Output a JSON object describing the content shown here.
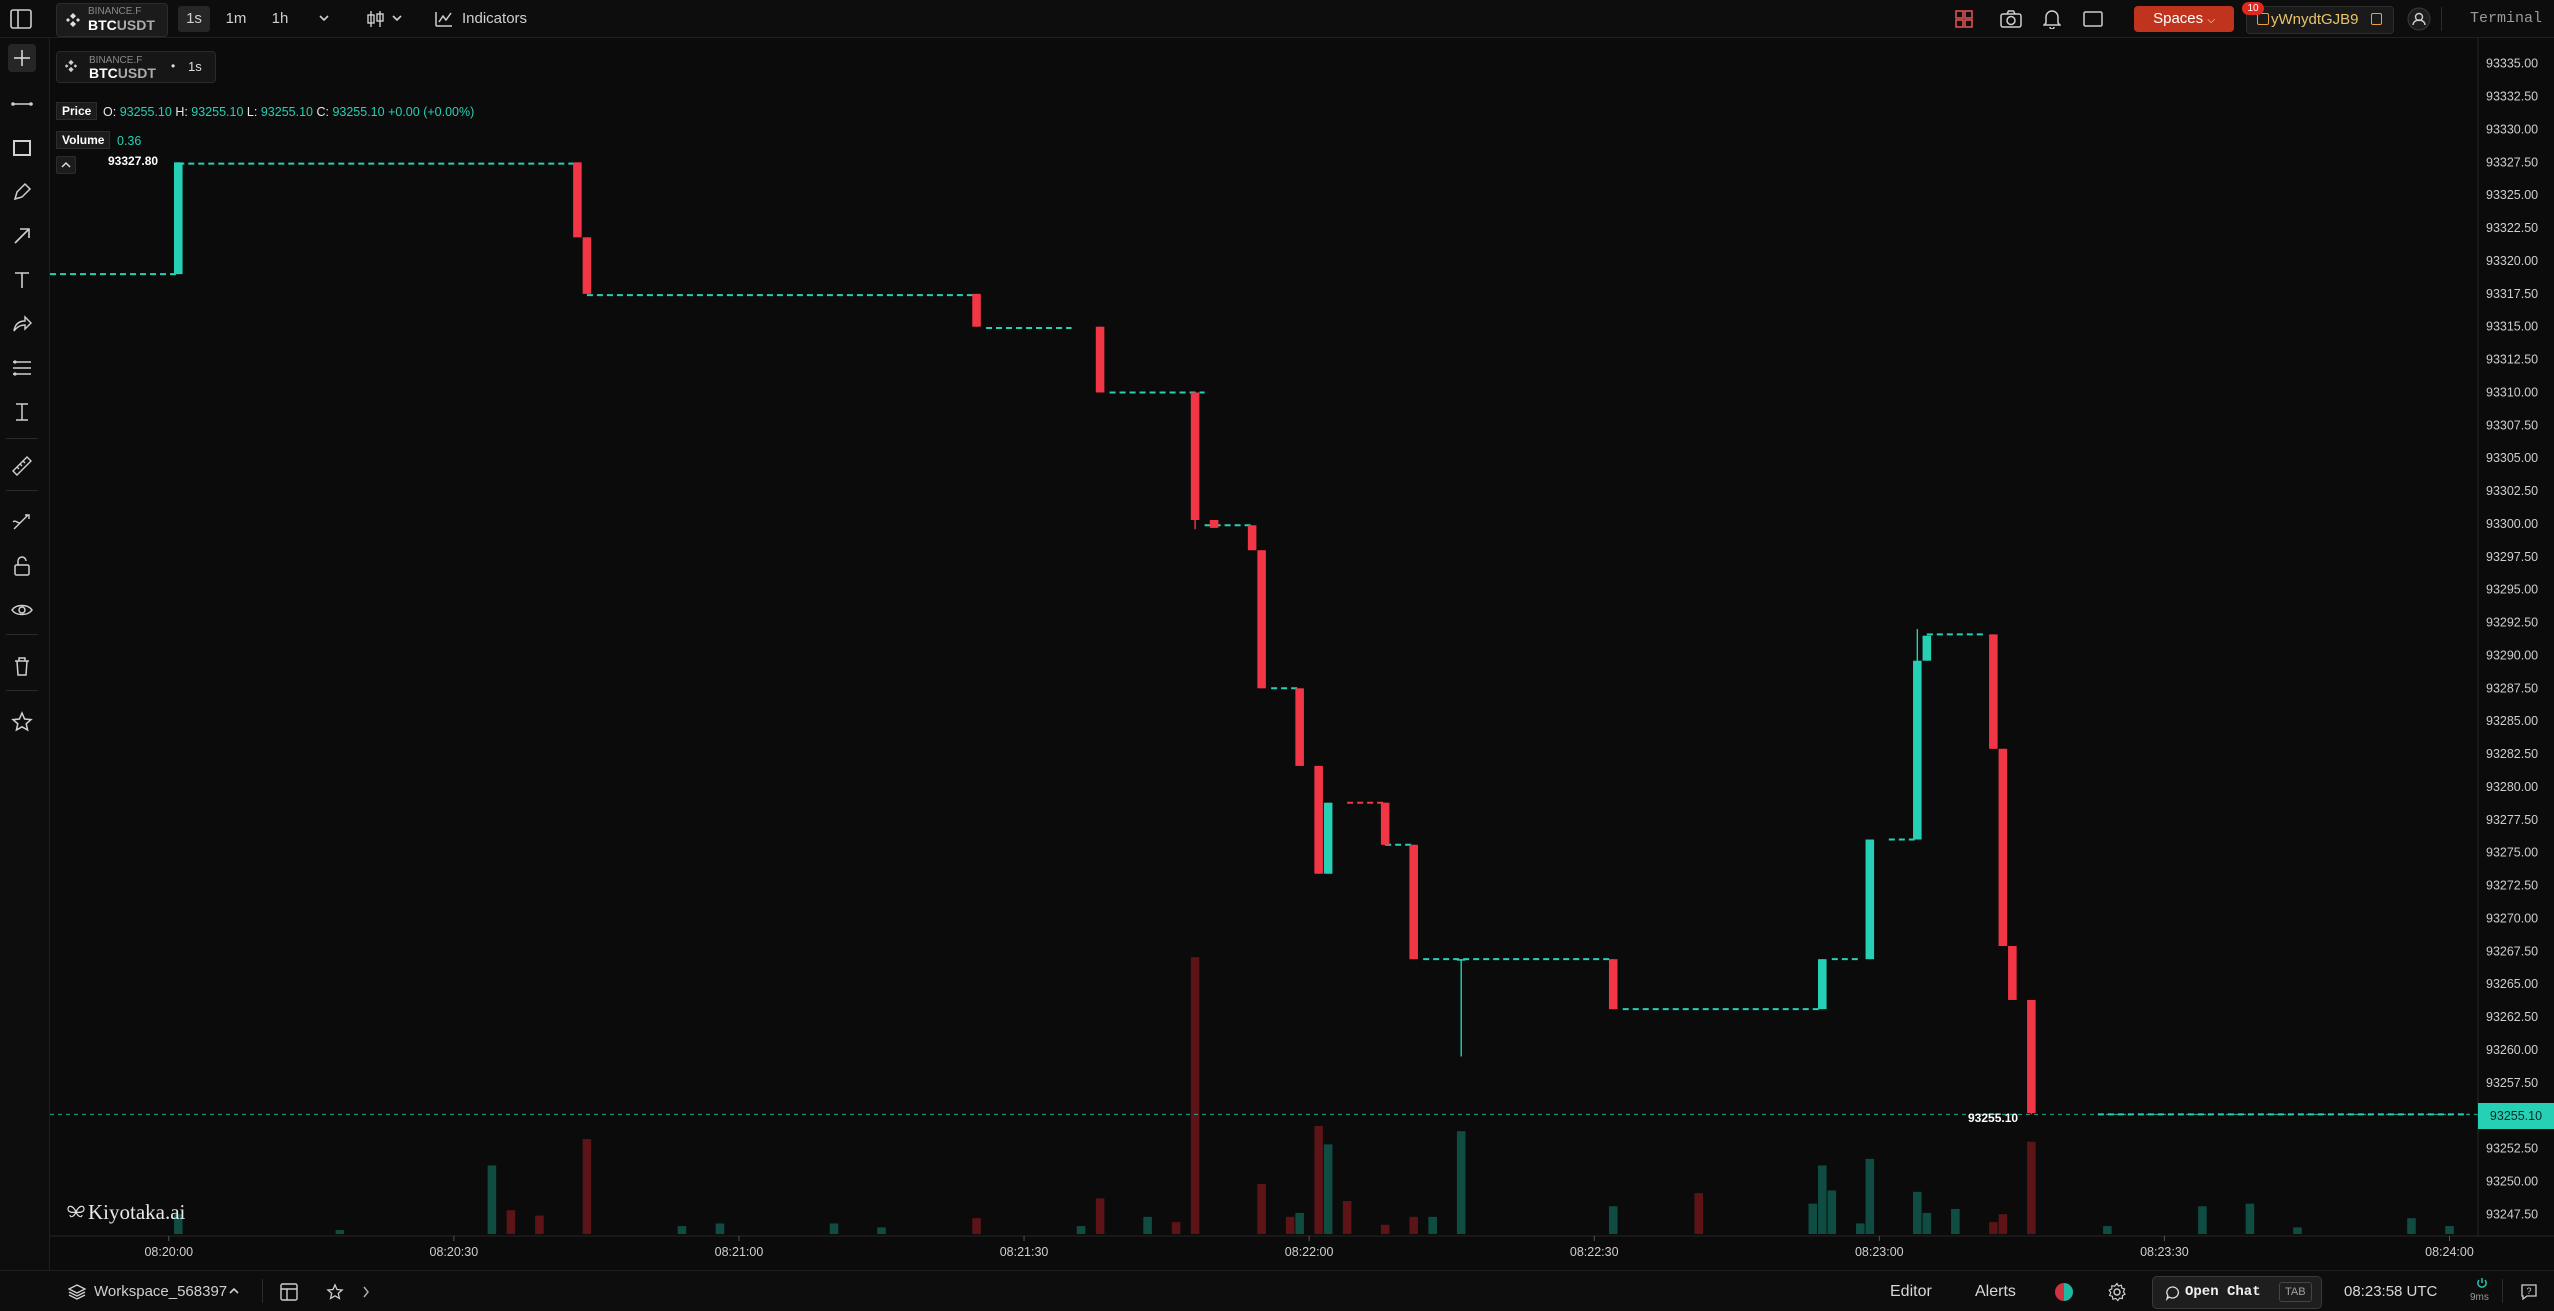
{
  "header": {
    "exchange": "BINANCE.F",
    "symbol_base": "BTC",
    "symbol_quote": "USDT",
    "intervals": [
      "1s",
      "1m",
      "1h"
    ],
    "active_interval": "1s",
    "indicators_label": "Indicators",
    "spaces_label": "Spaces",
    "account_name": "yWnydtGJB9",
    "notification_count": "10",
    "terminal_label": "Terminal"
  },
  "legend": {
    "exchange": "BINANCE.F",
    "symbol_base": "BTC",
    "symbol_quote": "USDT",
    "dot": "•",
    "interval": "1s",
    "price_label": "Price",
    "o_label": "O:",
    "o_value": "93255.10",
    "h_label": "H:",
    "h_value": "93255.10",
    "l_label": "L:",
    "l_value": "93255.10",
    "c_label": "C:",
    "c_value": "93255.10",
    "change": "+0.00",
    "change_pct": "(+0.00%)",
    "volume_label": "Volume",
    "volume_value": "0.36",
    "collapse_glyph": "^"
  },
  "watermark": "Kiyotaka.ai",
  "price_tags": {
    "high_tag": "93327.80",
    "last_tag": "93255.10",
    "axis_last": "93255.10"
  },
  "bottom": {
    "workspace": "Workspace_568397",
    "editor": "Editor",
    "alerts": "Alerts",
    "open_chat": "Open Chat",
    "tab_key": "TAB",
    "clock": "08:23:58 UTC",
    "latency": "9ms"
  },
  "colors": {
    "up": "#26d0b5",
    "down": "#f23645",
    "accent": "#c0341d",
    "volume_up": "#0f4d43",
    "volume_down": "#5c1416"
  },
  "chart_data": {
    "type": "candlestick",
    "y_ticks": [
      "93335.00",
      "93332.50",
      "93330.00",
      "93327.50",
      "93325.00",
      "93322.50",
      "93320.00",
      "93317.50",
      "93315.00",
      "93312.50",
      "93310.00",
      "93307.50",
      "93305.00",
      "93302.50",
      "93300.00",
      "93297.50",
      "93295.00",
      "93292.50",
      "93290.00",
      "93287.50",
      "93285.00",
      "93282.50",
      "93280.00",
      "93277.50",
      "93275.00",
      "93272.50",
      "93270.00",
      "93267.50",
      "93265.00",
      "93262.50",
      "93260.00",
      "93257.50",
      "93255.10",
      "93252.50",
      "93250.00",
      "93247.50"
    ],
    "ylim": [
      93246.0,
      93336.5
    ],
    "x_ticks": [
      "08:20:00",
      "08:20:30",
      "08:21:00",
      "08:21:30",
      "08:22:00",
      "08:22:30",
      "08:23:00",
      "08:23:30",
      "08:24:00"
    ],
    "x_tick_seconds": [
      0,
      30,
      60,
      90,
      120,
      150,
      180,
      210,
      240
    ],
    "xlim_seconds": [
      -12.5,
      243
    ],
    "last_price": 93255.1,
    "flat_segments": [
      {
        "x0": -12.5,
        "x1": 1,
        "price": 93319.0,
        "color": "up"
      },
      {
        "x0": 1,
        "x1": 43,
        "price": 93327.4,
        "color": "up"
      },
      {
        "x0": 44,
        "x1": 85,
        "price": 93317.4,
        "color": "up"
      },
      {
        "x0": 86,
        "x1": 95,
        "price": 93314.9,
        "color": "up"
      },
      {
        "x0": 99,
        "x1": 109,
        "price": 93310.0,
        "color": "up"
      },
      {
        "x0": 109,
        "x1": 114,
        "price": 93299.9,
        "color": "up"
      },
      {
        "x0": 116,
        "x1": 119,
        "price": 93287.5,
        "color": "up"
      },
      {
        "x0": 124,
        "x1": 128,
        "price": 93278.8,
        "color": "down"
      },
      {
        "x0": 128,
        "x1": 131,
        "price": 93275.6,
        "color": "up"
      },
      {
        "x0": 132,
        "x1": 152,
        "price": 93266.9,
        "color": "up"
      },
      {
        "x0": 153,
        "x1": 174,
        "price": 93263.1,
        "color": "up"
      },
      {
        "x0": 175,
        "x1": 178,
        "price": 93266.9,
        "color": "up"
      },
      {
        "x0": 181,
        "x1": 184,
        "price": 93276.0,
        "color": "up"
      },
      {
        "x0": 185,
        "x1": 191,
        "price": 93291.6,
        "color": "up"
      },
      {
        "x0": 203,
        "x1": 242,
        "price": 93255.1,
        "color": "up"
      }
    ],
    "candles": [
      {
        "t": 1,
        "o": 93319.0,
        "c": 93327.5,
        "h": 93327.5,
        "l": 93319.0
      },
      {
        "t": 43,
        "o": 93327.5,
        "c": 93321.8,
        "h": 93327.5,
        "l": 93321.8
      },
      {
        "t": 44,
        "o": 93321.8,
        "c": 93317.5,
        "h": 93321.8,
        "l": 93317.5
      },
      {
        "t": 85,
        "o": 93317.5,
        "c": 93315.0,
        "h": 93317.5,
        "l": 93315.0
      },
      {
        "t": 98,
        "o": 93315.0,
        "c": 93310.0,
        "h": 93315.0,
        "l": 93310.0
      },
      {
        "t": 108,
        "o": 93310.0,
        "c": 93300.3,
        "h": 93310.0,
        "l": 93299.6
      },
      {
        "t": 110,
        "o": 93300.3,
        "c": 93299.7,
        "h": 93300.3,
        "l": 93299.7
      },
      {
        "t": 114,
        "o": 93299.9,
        "c": 93298.0,
        "h": 93299.9,
        "l": 93298.0
      },
      {
        "t": 115,
        "o": 93298.0,
        "c": 93287.5,
        "h": 93298.0,
        "l": 93287.5
      },
      {
        "t": 119,
        "o": 93287.5,
        "c": 93281.6,
        "h": 93287.5,
        "l": 93281.6
      },
      {
        "t": 121,
        "o": 93281.6,
        "c": 93273.4,
        "h": 93281.6,
        "l": 93273.4
      },
      {
        "t": 122,
        "o": 93273.4,
        "c": 93278.8,
        "h": 93278.8,
        "l": 93273.4
      },
      {
        "t": 128,
        "o": 93278.8,
        "c": 93275.6,
        "h": 93278.8,
        "l": 93275.6
      },
      {
        "t": 131,
        "o": 93275.6,
        "c": 93266.9,
        "h": 93275.6,
        "l": 93266.9
      },
      {
        "t": 136,
        "o": 93266.9,
        "c": 93266.9,
        "h": 93266.9,
        "l": 93259.5
      },
      {
        "t": 152,
        "o": 93266.9,
        "c": 93263.1,
        "h": 93266.9,
        "l": 93263.1
      },
      {
        "t": 174,
        "o": 93263.1,
        "c": 93266.9,
        "h": 93266.9,
        "l": 93263.1
      },
      {
        "t": 179,
        "o": 93266.9,
        "c": 93276.0,
        "h": 93276.0,
        "l": 93266.9
      },
      {
        "t": 184,
        "o": 93276.0,
        "c": 93289.6,
        "h": 93292.0,
        "l": 93276.0
      },
      {
        "t": 185,
        "o": 93289.6,
        "c": 93291.5,
        "h": 93291.5,
        "l": 93289.6
      },
      {
        "t": 192,
        "o": 93291.6,
        "c": 93282.9,
        "h": 93291.6,
        "l": 93282.9
      },
      {
        "t": 193,
        "o": 93282.9,
        "c": 93267.9,
        "h": 93282.9,
        "l": 93267.9
      },
      {
        "t": 194,
        "o": 93267.9,
        "c": 93263.8,
        "h": 93267.9,
        "l": 93263.8
      },
      {
        "t": 196,
        "o": 93263.8,
        "c": 93255.2,
        "h": 93263.8,
        "l": 93255.1
      }
    ],
    "volume": [
      {
        "t": 1,
        "v": 0.15,
        "d": "up"
      },
      {
        "t": 18,
        "v": 0.03,
        "d": "up"
      },
      {
        "t": 34,
        "v": 0.52,
        "d": "up"
      },
      {
        "t": 36,
        "v": 0.18,
        "d": "down"
      },
      {
        "t": 39,
        "v": 0.14,
        "d": "down"
      },
      {
        "t": 44,
        "v": 0.72,
        "d": "down"
      },
      {
        "t": 54,
        "v": 0.06,
        "d": "up"
      },
      {
        "t": 58,
        "v": 0.08,
        "d": "up"
      },
      {
        "t": 70,
        "v": 0.08,
        "d": "up"
      },
      {
        "t": 75,
        "v": 0.05,
        "d": "up"
      },
      {
        "t": 85,
        "v": 0.12,
        "d": "down"
      },
      {
        "t": 96,
        "v": 0.06,
        "d": "up"
      },
      {
        "t": 98,
        "v": 0.27,
        "d": "down"
      },
      {
        "t": 103,
        "v": 0.13,
        "d": "up"
      },
      {
        "t": 106,
        "v": 0.09,
        "d": "down"
      },
      {
        "t": 108,
        "v": 2.1,
        "d": "down"
      },
      {
        "t": 115,
        "v": 0.38,
        "d": "down"
      },
      {
        "t": 118,
        "v": 0.13,
        "d": "down"
      },
      {
        "t": 119,
        "v": 0.16,
        "d": "up"
      },
      {
        "t": 121,
        "v": 0.82,
        "d": "down"
      },
      {
        "t": 122,
        "v": 0.68,
        "d": "up"
      },
      {
        "t": 124,
        "v": 0.25,
        "d": "down"
      },
      {
        "t": 128,
        "v": 0.07,
        "d": "down"
      },
      {
        "t": 131,
        "v": 0.13,
        "d": "down"
      },
      {
        "t": 133,
        "v": 0.13,
        "d": "up"
      },
      {
        "t": 136,
        "v": 0.78,
        "d": "up"
      },
      {
        "t": 152,
        "v": 0.21,
        "d": "up"
      },
      {
        "t": 161,
        "v": 0.31,
        "d": "down"
      },
      {
        "t": 173,
        "v": 0.23,
        "d": "up"
      },
      {
        "t": 174,
        "v": 0.52,
        "d": "up"
      },
      {
        "t": 175,
        "v": 0.33,
        "d": "up"
      },
      {
        "t": 178,
        "v": 0.08,
        "d": "up"
      },
      {
        "t": 179,
        "v": 0.57,
        "d": "up"
      },
      {
        "t": 184,
        "v": 0.32,
        "d": "up"
      },
      {
        "t": 185,
        "v": 0.16,
        "d": "up"
      },
      {
        "t": 188,
        "v": 0.19,
        "d": "up"
      },
      {
        "t": 192,
        "v": 0.09,
        "d": "down"
      },
      {
        "t": 193,
        "v": 0.15,
        "d": "down"
      },
      {
        "t": 196,
        "v": 0.7,
        "d": "down"
      },
      {
        "t": 204,
        "v": 0.06,
        "d": "up"
      },
      {
        "t": 214,
        "v": 0.21,
        "d": "up"
      },
      {
        "t": 219,
        "v": 0.23,
        "d": "up"
      },
      {
        "t": 224,
        "v": 0.05,
        "d": "up"
      },
      {
        "t": 236,
        "v": 0.12,
        "d": "up"
      },
      {
        "t": 240,
        "v": 0.06,
        "d": "up"
      }
    ],
    "volume_max": 2.2
  }
}
